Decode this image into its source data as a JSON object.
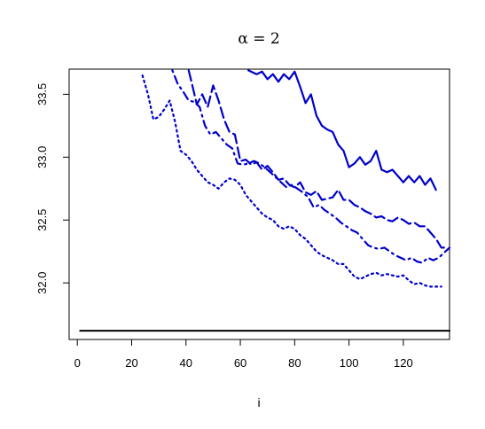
{
  "chart_data": {
    "type": "line",
    "title": "α = 2",
    "xlabel": "i",
    "ylabel": "",
    "xlim": [
      -3,
      137
    ],
    "ylim": [
      31.55,
      33.7
    ],
    "x_ticks": [
      "0",
      "20",
      "40",
      "60",
      "80",
      "100",
      "120"
    ],
    "x_tick_values": [
      0,
      20,
      40,
      60,
      80,
      100,
      120
    ],
    "y_ticks": [
      "32.0",
      "32.5",
      "33.0",
      "33.5"
    ],
    "y_tick_values": [
      32.0,
      32.5,
      33.0,
      33.5
    ],
    "grid": false,
    "series": [
      {
        "style": "solid",
        "color": "#000000",
        "x": [
          1,
          137
        ],
        "y": [
          31.62,
          31.62
        ]
      },
      {
        "style": "solid",
        "color": "#0000CC",
        "x": [
          63,
          66,
          68,
          70,
          72,
          74,
          76,
          78,
          80,
          82,
          84,
          86,
          88,
          90,
          92,
          94,
          96,
          98,
          100,
          102,
          104,
          106,
          108,
          110,
          112,
          114,
          116,
          118,
          120,
          122,
          124,
          126,
          128,
          130,
          132
        ],
        "y": [
          33.69,
          33.66,
          33.68,
          33.62,
          33.66,
          33.6,
          33.66,
          33.62,
          33.68,
          33.56,
          33.43,
          33.5,
          33.33,
          33.25,
          33.22,
          33.2,
          33.1,
          33.05,
          32.92,
          32.95,
          33.0,
          32.94,
          32.97,
          33.05,
          32.9,
          32.88,
          32.9,
          32.85,
          32.8,
          32.85,
          32.8,
          32.85,
          32.78,
          32.83,
          32.74
        ]
      },
      {
        "style": "longdash",
        "color": "#0000CC",
        "x": [
          41,
          42,
          44,
          46,
          48,
          50,
          52,
          54,
          56,
          58,
          60,
          62,
          64,
          66,
          68,
          70,
          72,
          74,
          76,
          78,
          80,
          82,
          84,
          86,
          88,
          90,
          92,
          94,
          96,
          98,
          100,
          102,
          104,
          106,
          108,
          110,
          112,
          114,
          116,
          118,
          120,
          122,
          124,
          126,
          128,
          130,
          132,
          134,
          136
        ],
        "y": [
          33.69,
          33.6,
          33.42,
          33.5,
          33.4,
          33.57,
          33.45,
          33.3,
          33.2,
          33.18,
          32.97,
          32.98,
          32.94,
          32.96,
          32.9,
          32.93,
          32.88,
          32.82,
          32.83,
          32.78,
          32.76,
          32.8,
          32.72,
          32.7,
          32.73,
          32.66,
          32.67,
          32.68,
          32.74,
          32.66,
          32.66,
          32.62,
          32.6,
          32.57,
          32.55,
          32.52,
          32.53,
          32.5,
          32.49,
          32.52,
          32.5,
          32.47,
          32.48,
          32.45,
          32.45,
          32.4,
          32.35,
          32.28,
          32.28
        ]
      },
      {
        "style": "dotdash",
        "color": "#0000CC",
        "x": [
          35,
          37,
          39,
          41,
          43,
          45,
          47,
          49,
          51,
          53,
          55,
          57,
          59,
          61,
          63,
          65,
          67,
          69,
          71,
          73,
          75,
          77,
          79,
          81,
          83,
          85,
          87,
          89,
          91,
          93,
          95,
          97,
          99,
          101,
          103,
          105,
          107,
          109,
          111,
          113,
          115,
          117,
          119,
          121,
          123,
          125,
          127,
          129,
          131,
          133,
          135,
          137
        ],
        "y": [
          33.69,
          33.58,
          33.52,
          33.45,
          33.44,
          33.4,
          33.25,
          33.18,
          33.2,
          33.15,
          33.1,
          33.07,
          32.95,
          32.94,
          32.95,
          32.97,
          32.95,
          32.92,
          32.88,
          32.84,
          32.8,
          32.76,
          32.78,
          32.75,
          32.72,
          32.68,
          32.6,
          32.62,
          32.58,
          32.55,
          32.52,
          32.48,
          32.45,
          32.42,
          32.4,
          32.35,
          32.3,
          32.28,
          32.27,
          32.28,
          32.25,
          32.22,
          32.2,
          32.18,
          32.2,
          32.17,
          32.16,
          32.2,
          32.18,
          32.2,
          32.24,
          32.28
        ]
      },
      {
        "style": "dotted",
        "color": "#0000CC",
        "x": [
          24,
          26,
          28,
          30,
          32,
          34,
          36,
          38,
          40,
          42,
          44,
          46,
          48,
          50,
          52,
          54,
          56,
          58,
          60,
          62,
          64,
          66,
          68,
          70,
          72,
          74,
          76,
          78,
          80,
          82,
          84,
          86,
          88,
          90,
          92,
          94,
          96,
          98,
          100,
          102,
          104,
          106,
          108,
          110,
          112,
          114,
          116,
          118,
          120,
          122,
          124,
          126,
          128,
          130,
          132,
          134
        ],
        "y": [
          33.65,
          33.5,
          33.3,
          33.32,
          33.38,
          33.45,
          33.28,
          33.05,
          33.02,
          32.97,
          32.9,
          32.85,
          32.8,
          32.78,
          32.75,
          32.8,
          32.83,
          32.82,
          32.78,
          32.7,
          32.65,
          32.6,
          32.55,
          32.52,
          32.5,
          32.45,
          32.43,
          32.45,
          32.43,
          32.38,
          32.35,
          32.3,
          32.25,
          32.22,
          32.2,
          32.18,
          32.15,
          32.15,
          32.1,
          32.05,
          32.03,
          32.05,
          32.07,
          32.08,
          32.06,
          32.07,
          32.06,
          32.05,
          32.06,
          32.02,
          31.99,
          32.0,
          31.98,
          31.97,
          31.97,
          31.97
        ]
      }
    ]
  }
}
